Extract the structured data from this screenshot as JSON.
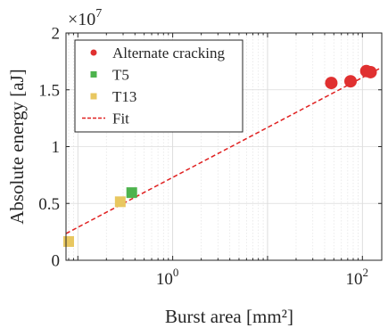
{
  "chart_data": {
    "type": "scatter",
    "title": "",
    "xlabel": "Burst area [mm²]",
    "ylabel": "Absolute energy [aJ]",
    "x_scale": "log",
    "xlim": [
      0.075,
      160
    ],
    "ylim": [
      0,
      2
    ],
    "y_multiplier_label": "×10",
    "y_multiplier_exponent": "7",
    "x_ticks": [
      {
        "value": 1,
        "base": "10",
        "exp": "0"
      },
      {
        "value": 100,
        "base": "10",
        "exp": "2"
      }
    ],
    "y_ticks": [
      {
        "value": 0,
        "label": "0"
      },
      {
        "value": 0.5,
        "label": "0.5"
      },
      {
        "value": 1,
        "label": "1"
      },
      {
        "value": 1.5,
        "label": "1.5"
      },
      {
        "value": 2,
        "label": "2"
      }
    ],
    "grid": true,
    "legend_position": "top-left",
    "series": [
      {
        "name": "Alternate cracking",
        "marker": "circle",
        "color": "#e03030",
        "points": [
          [
            47,
            1.56
          ],
          [
            75,
            1.575
          ],
          [
            110,
            1.665
          ],
          [
            122,
            1.655
          ]
        ]
      },
      {
        "name": "T5",
        "marker": "square",
        "color": "#4db34d",
        "points": [
          [
            0.37,
            0.595
          ]
        ]
      },
      {
        "name": "T13",
        "marker": "square",
        "color": "#e8c760",
        "points": [
          [
            0.08,
            0.165
          ],
          [
            0.28,
            0.515
          ]
        ]
      }
    ],
    "fit": {
      "name": "Fit",
      "color": "#e02020",
      "style": "dashed",
      "points": [
        [
          0.075,
          0.235
        ],
        [
          150,
          1.685
        ]
      ]
    }
  }
}
